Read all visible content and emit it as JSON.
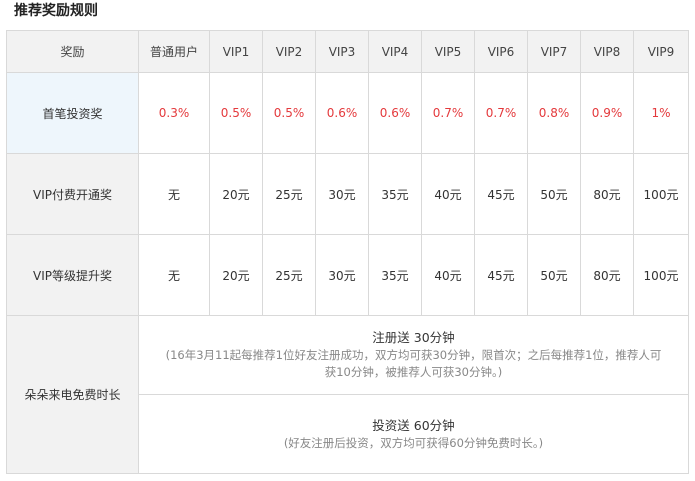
{
  "title": "推荐奖励规则",
  "header": {
    "label_col": "奖励",
    "levels": [
      "普通用户",
      "VIP1",
      "VIP2",
      "VIP3",
      "VIP4",
      "VIP5",
      "VIP6",
      "VIP7",
      "VIP8",
      "VIP9"
    ]
  },
  "rows": [
    {
      "label": "首笔投资奖",
      "values": [
        "0.3%",
        "0.5%",
        "0.5%",
        "0.6%",
        "0.6%",
        "0.7%",
        "0.7%",
        "0.8%",
        "0.9%",
        "1%"
      ],
      "highlight_color": "#e4393c"
    },
    {
      "label": "VIP付费开通奖",
      "values": [
        "无",
        "20元",
        "25元",
        "30元",
        "35元",
        "40元",
        "45元",
        "50元",
        "80元",
        "100元"
      ]
    },
    {
      "label": "VIP等级提升奖",
      "values": [
        "无",
        "20元",
        "25元",
        "30元",
        "35元",
        "40元",
        "45元",
        "50元",
        "80元",
        "100元"
      ]
    }
  ],
  "free_time": {
    "label": "朵朵来电免费时长",
    "register": {
      "title": "注册送 30分钟",
      "note": "(16年3月11起每推荐1位好友注册成功，双方均可获30分钟，限首次；之后每推荐1位，推荐人可获10分钟，被推荐人可获30分钟。)"
    },
    "invest": {
      "title": "投资送 60分钟",
      "note": "(好友注册后投资，双方均可获得60分钟免费时长。)"
    }
  }
}
